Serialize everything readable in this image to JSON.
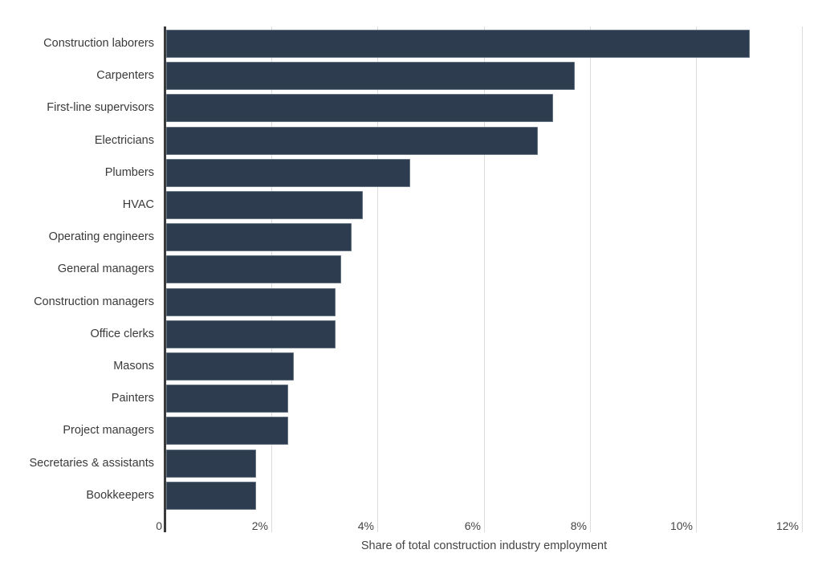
{
  "chart_data": {
    "type": "bar",
    "orientation": "horizontal",
    "title": "",
    "xlabel": "Share of total construction industry employment",
    "ylabel": "",
    "xlim": [
      0,
      12
    ],
    "x_ticks": [
      "0",
      "2%",
      "4%",
      "6%",
      "8%",
      "10%",
      "12%"
    ],
    "x_tick_values": [
      0,
      2,
      4,
      6,
      8,
      10,
      12
    ],
    "grid": true,
    "legend": null,
    "bar_color": "#2d3c4f",
    "categories": [
      "Construction laborers",
      "Carpenters",
      "First-line supervisors",
      "Electricians",
      "Plumbers",
      "HVAC",
      "Operating engineers",
      "General managers",
      "Construction managers",
      "Office clerks",
      "Masons",
      "Painters",
      "Project managers",
      "Secretaries & assistants",
      "Bookkeepers"
    ],
    "values": [
      11.0,
      7.7,
      7.3,
      7.0,
      4.6,
      3.7,
      3.5,
      3.3,
      3.2,
      3.2,
      2.4,
      2.3,
      2.3,
      1.7,
      1.7
    ]
  }
}
